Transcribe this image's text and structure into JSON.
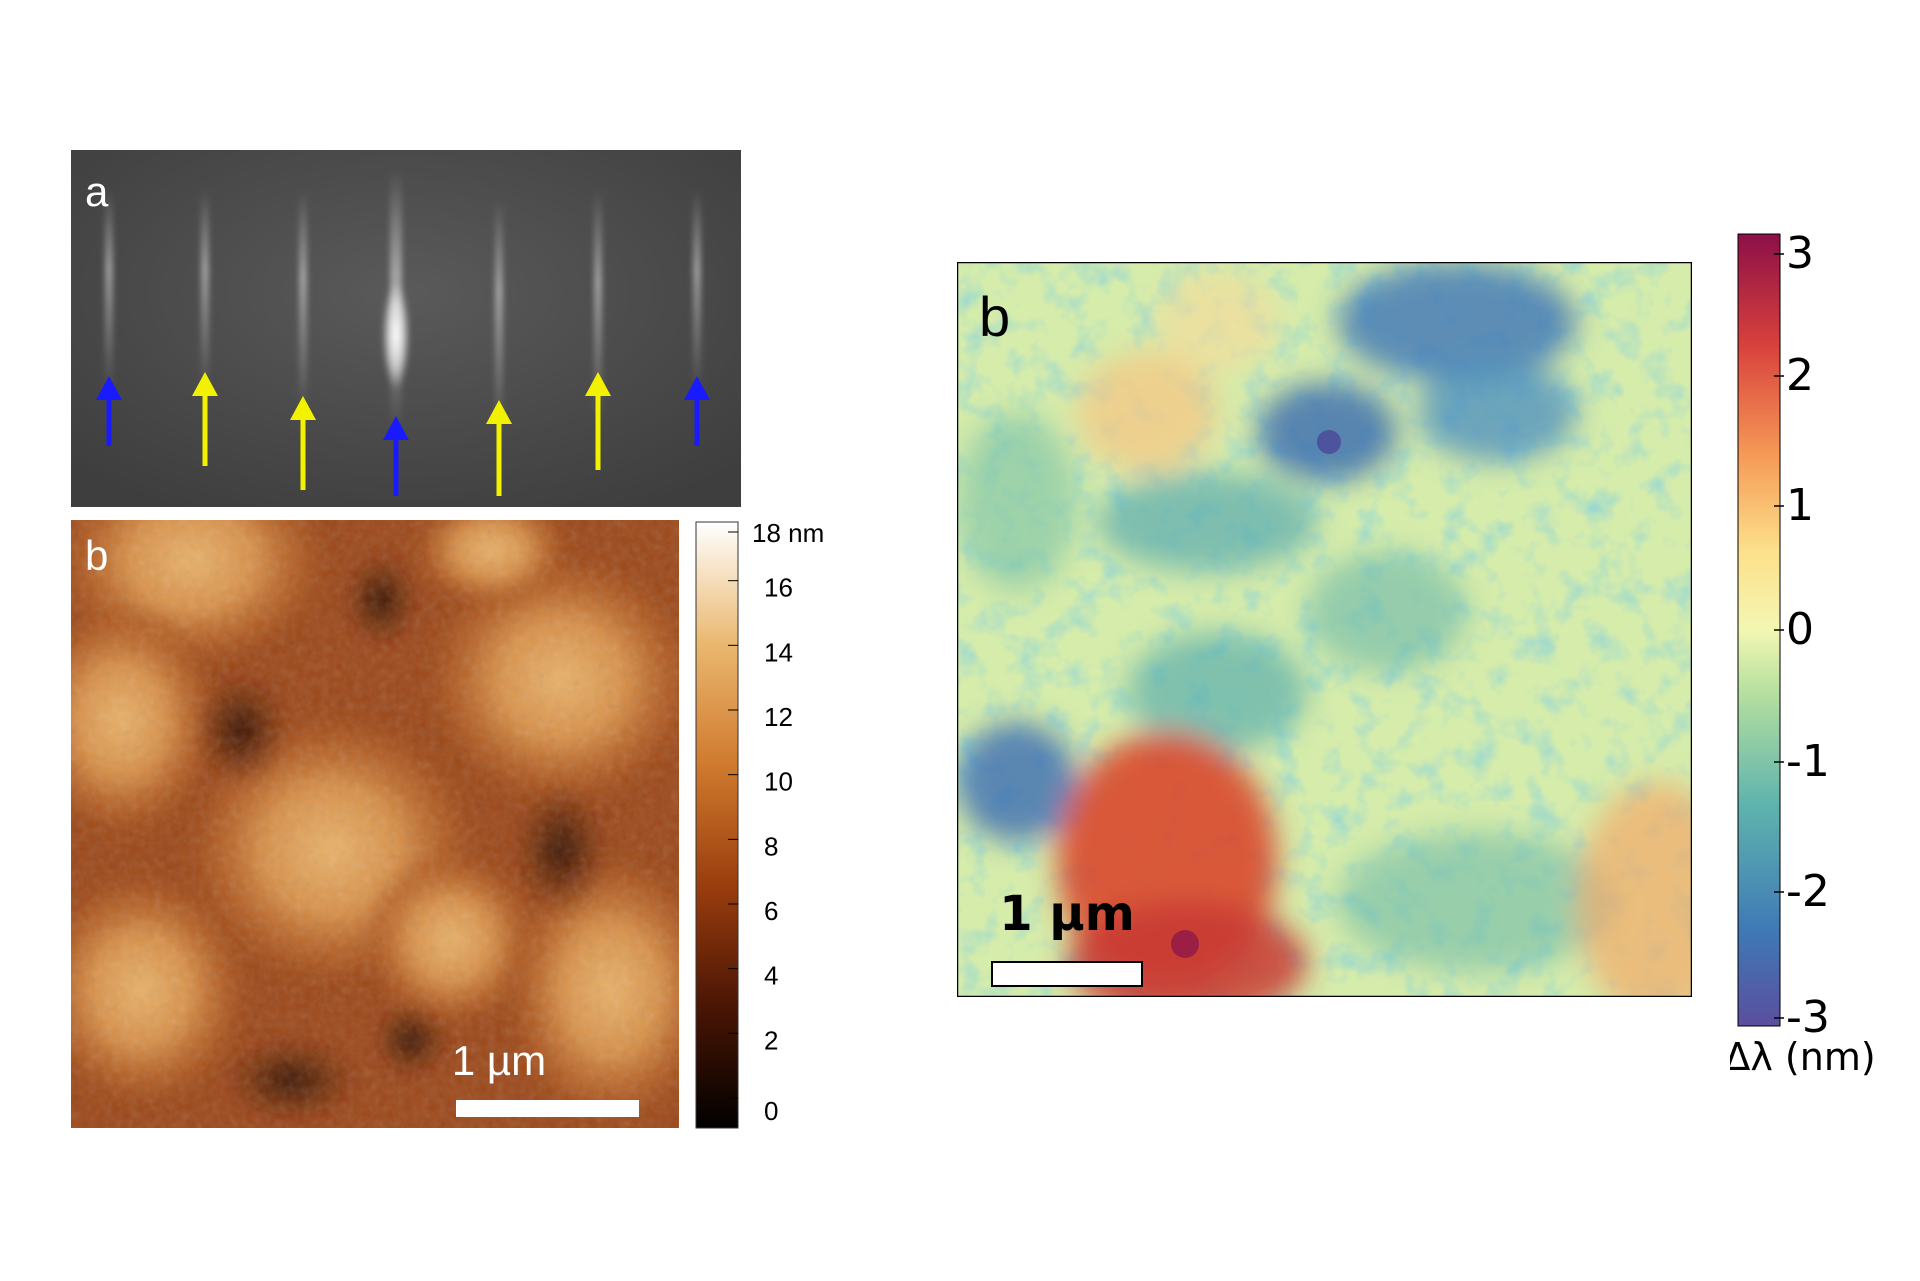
{
  "panel_a": {
    "label": "a",
    "arrows": [
      {
        "color": "#1a1aff"
      },
      {
        "color": "#f2f200"
      },
      {
        "color": "#f2f200"
      },
      {
        "color": "#1a1aff"
      },
      {
        "color": "#f2f200"
      },
      {
        "color": "#f2f200"
      },
      {
        "color": "#1a1aff"
      }
    ]
  },
  "panel_b_afm": {
    "label": "b",
    "scale_bar_label": "1 µm",
    "colorbar": {
      "top_label": "18 nm",
      "ticks": [
        "16",
        "14",
        "12",
        "10",
        "8",
        "6",
        "4",
        "2",
        "0"
      ]
    }
  },
  "panel_b_pl": {
    "label": "b",
    "scale_bar_label": "1 µm",
    "colorbar": {
      "ticks": [
        "3",
        "2",
        "1",
        "0",
        "-1",
        "-2",
        "-3"
      ],
      "label": "Δλ (nm)"
    }
  }
}
